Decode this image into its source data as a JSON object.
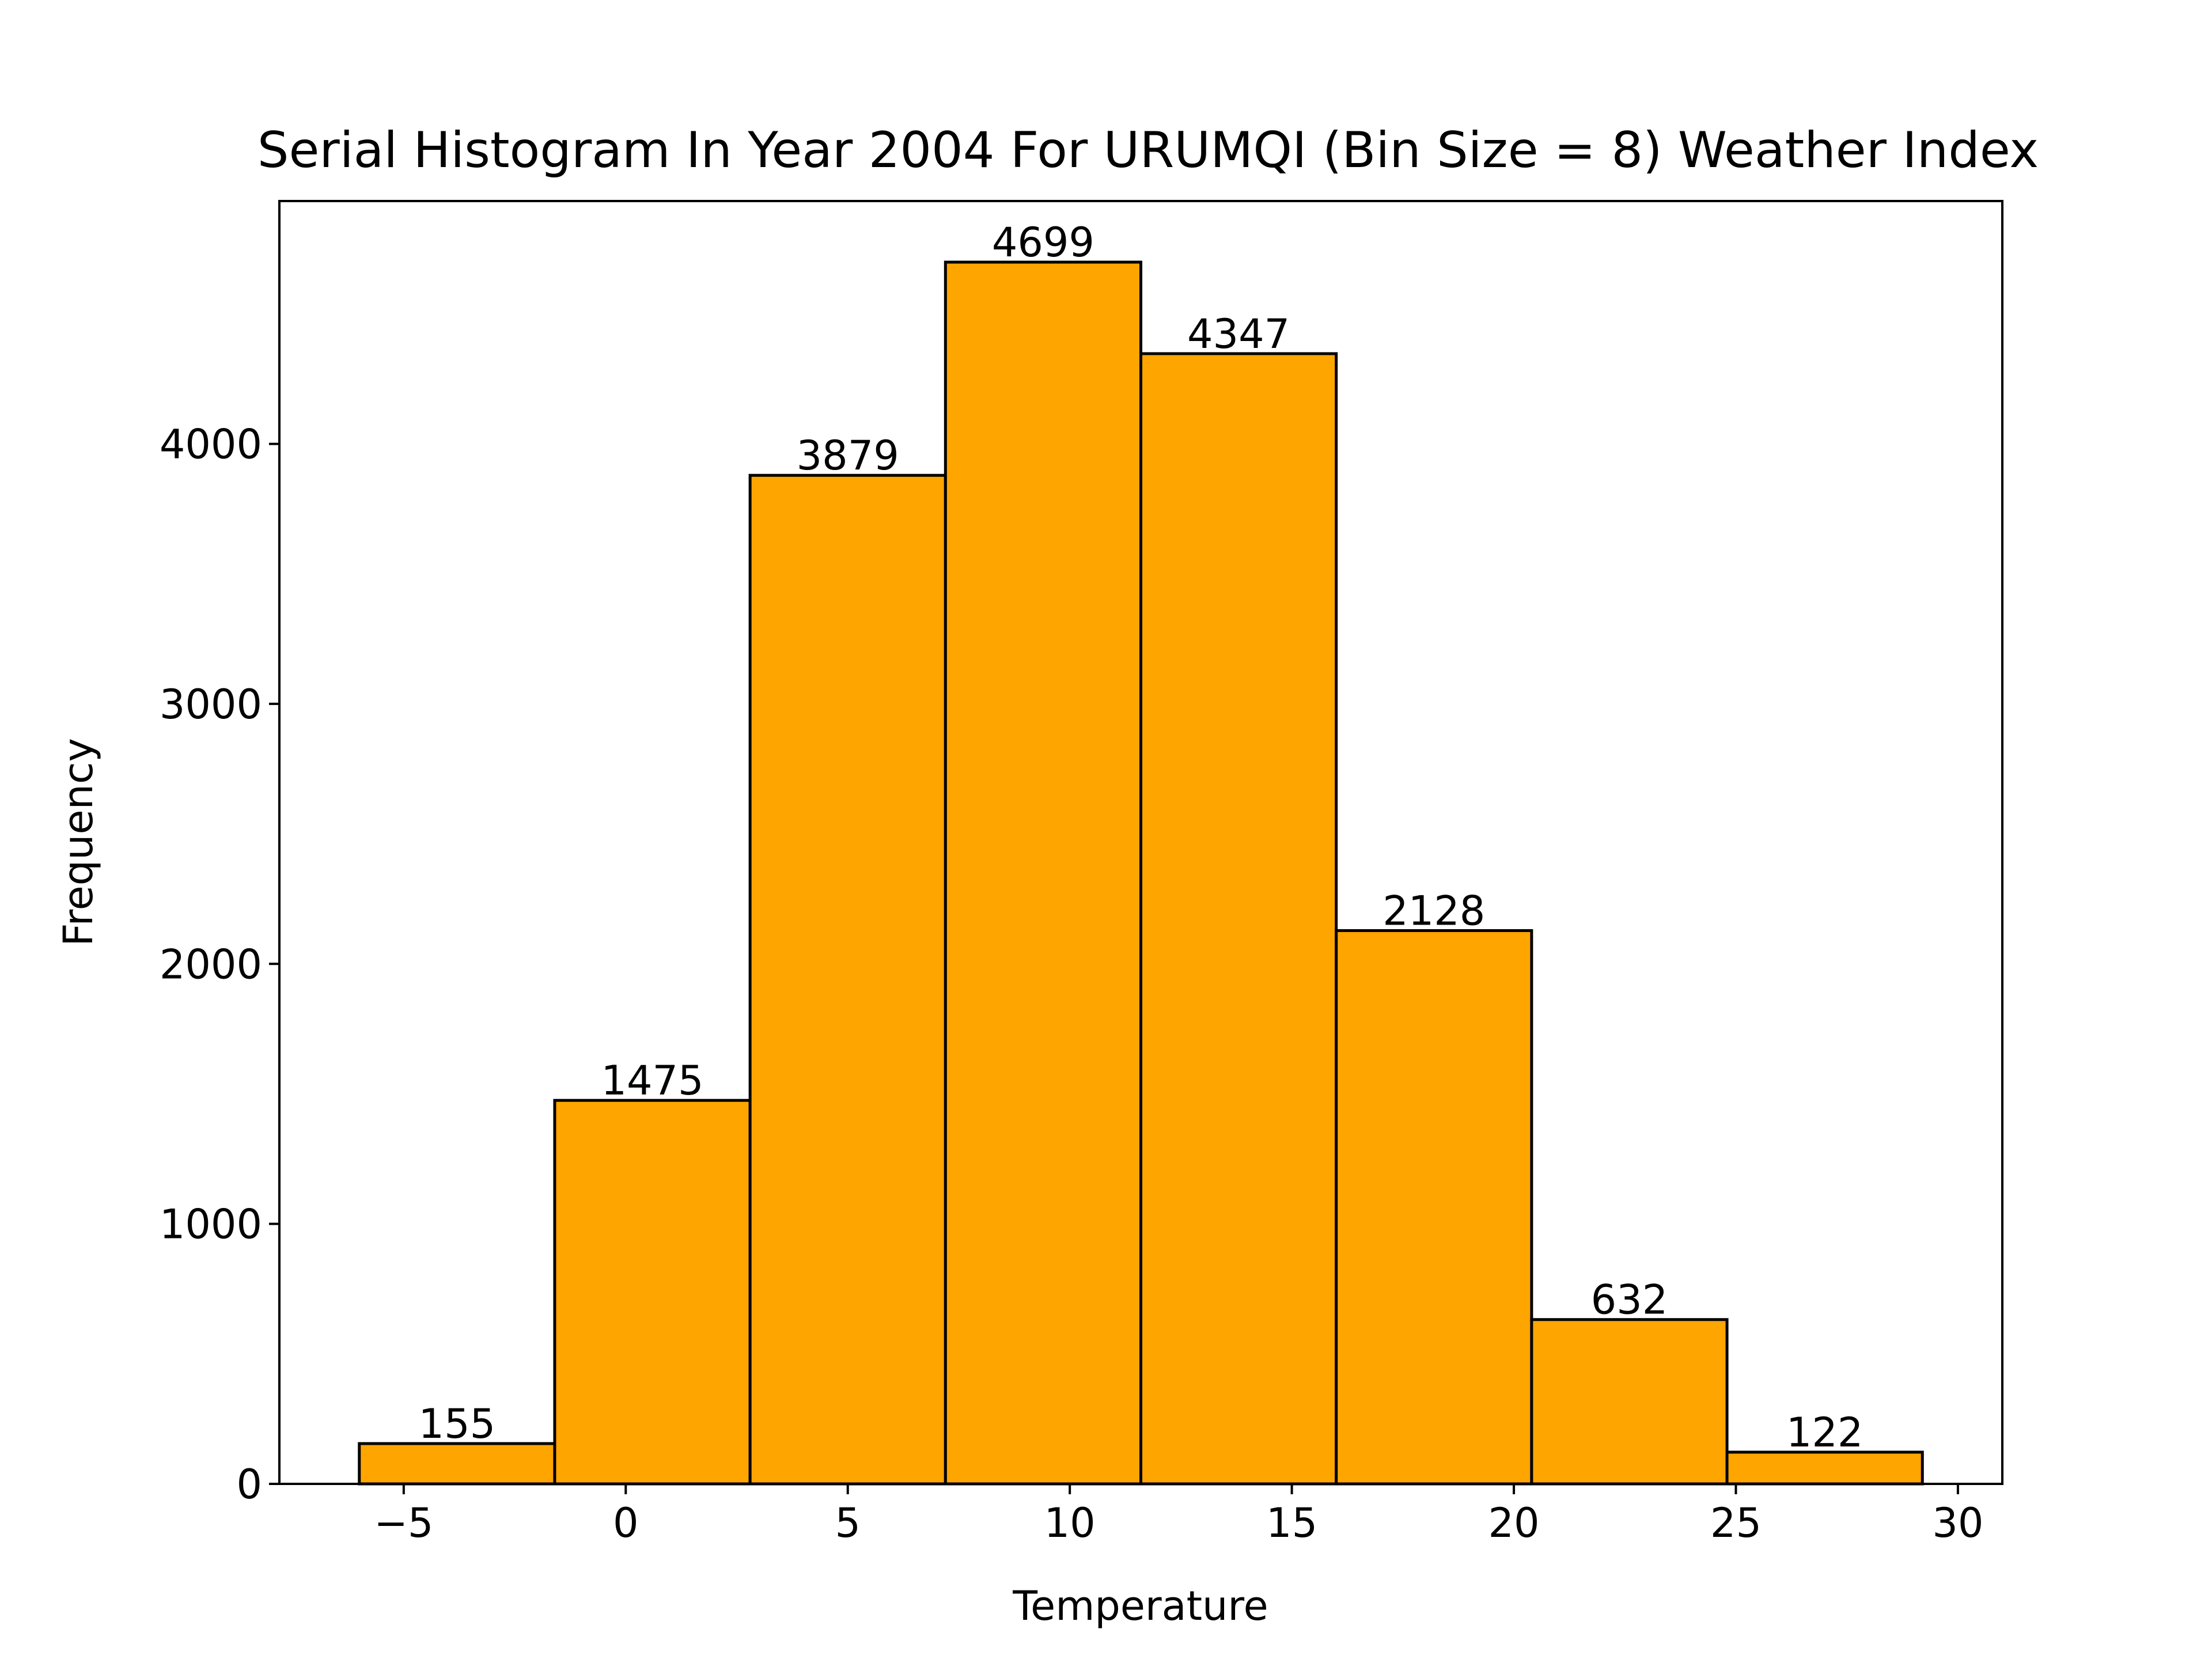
{
  "chart_data": {
    "type": "bar",
    "title": "Serial Histogram In Year 2004 For URUMQI (Bin Size = 8) Weather Index",
    "xlabel": "Temperature",
    "ylabel": "Frequency",
    "bins": [
      {
        "x0": -6.0,
        "x1": -1.6,
        "value": 155,
        "label": "155"
      },
      {
        "x0": -1.6,
        "x1": 2.8,
        "value": 1475,
        "label": "1475"
      },
      {
        "x0": 2.8,
        "x1": 7.2,
        "value": 3879,
        "label": "3879"
      },
      {
        "x0": 7.2,
        "x1": 11.6,
        "value": 4699,
        "label": "4699"
      },
      {
        "x0": 11.6,
        "x1": 16.0,
        "value": 4347,
        "label": "4347"
      },
      {
        "x0": 16.0,
        "x1": 20.4,
        "value": 2128,
        "label": "2128"
      },
      {
        "x0": 20.4,
        "x1": 24.8,
        "value": 632,
        "label": "632"
      },
      {
        "x0": 24.8,
        "x1": 29.2,
        "value": 122,
        "label": "122"
      }
    ],
    "xlim": [
      -7.8,
      31.0
    ],
    "ylim": [
      0,
      4934
    ],
    "xticks": [
      -5,
      0,
      5,
      10,
      15,
      20,
      25,
      30
    ],
    "xtick_labels": [
      "−5",
      "0",
      "5",
      "10",
      "15",
      "20",
      "25",
      "30"
    ],
    "yticks": [
      0,
      1000,
      2000,
      3000,
      4000
    ],
    "ytick_labels": [
      "0",
      "1000",
      "2000",
      "3000",
      "4000"
    ],
    "bar_color": "#ffa500",
    "edge_color": "#000000",
    "grid": false,
    "legend": "none"
  }
}
